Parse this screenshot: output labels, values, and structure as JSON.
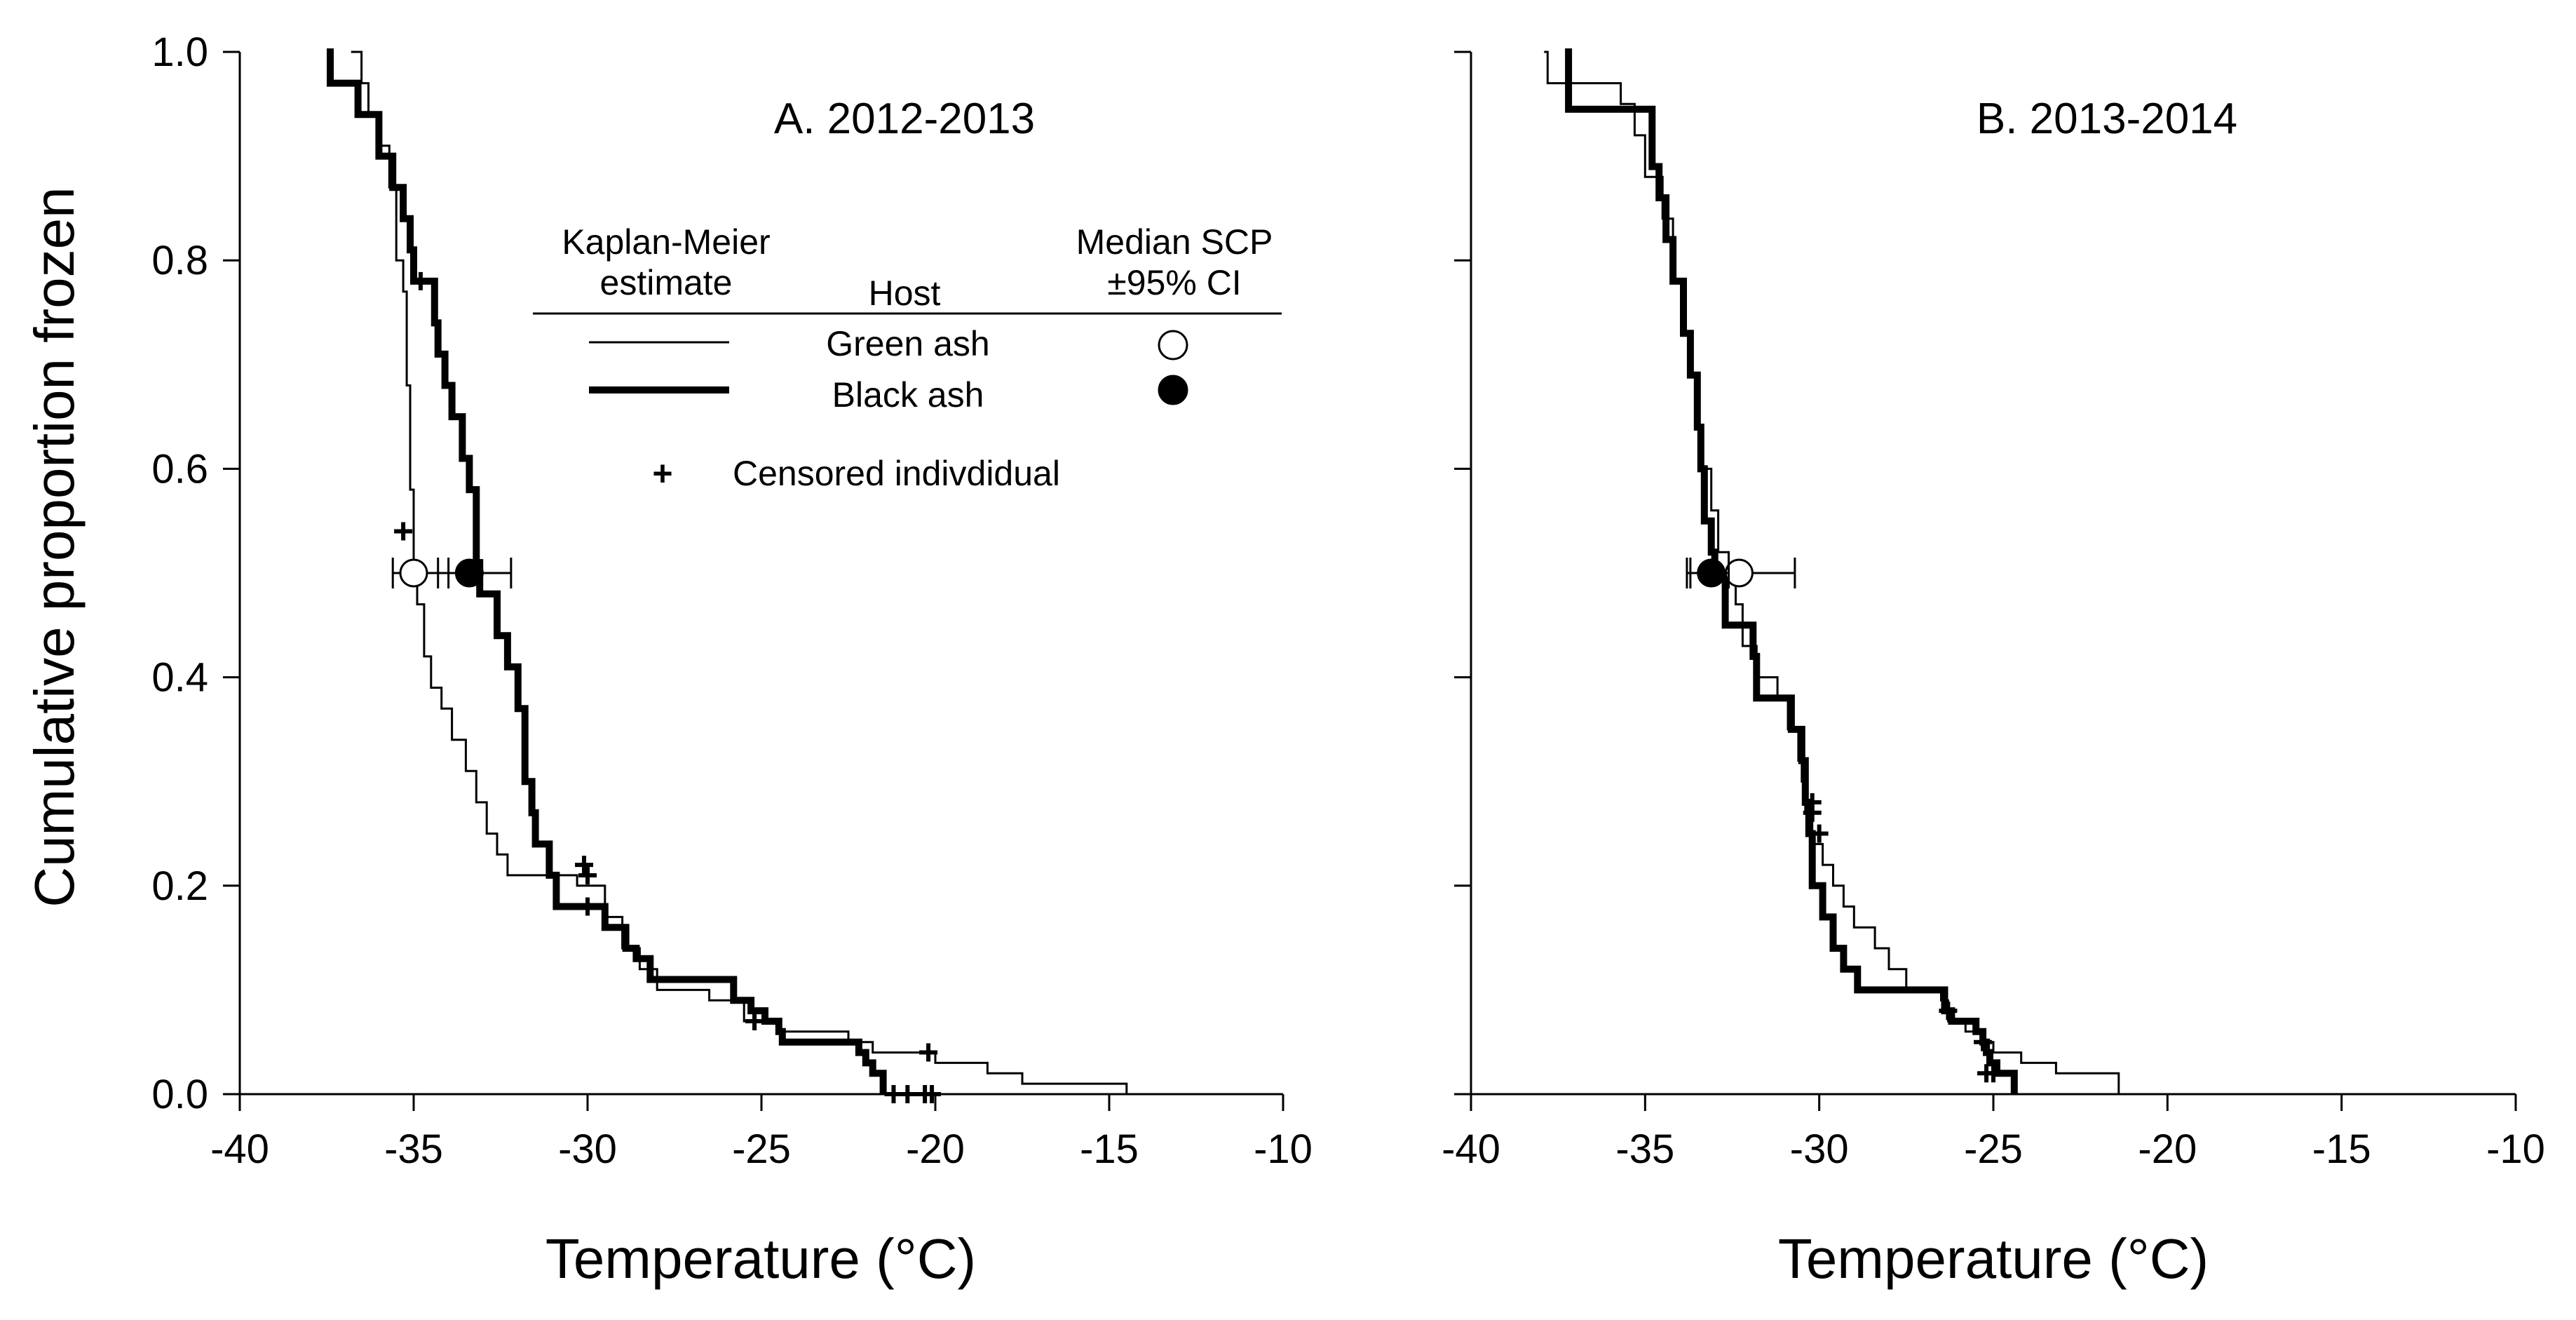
{
  "chart_data": {
    "type": "step",
    "shared": {
      "ylabel": "Cumulative proportion frozen",
      "xlabel": "Temperature (°C)",
      "xlim": [
        -40,
        -10
      ],
      "ylim": [
        0,
        1
      ],
      "xticks": [
        -40,
        -35,
        -30,
        -25,
        -20,
        -15,
        -10
      ],
      "yticks": [
        0.0,
        0.2,
        0.4,
        0.6,
        0.8,
        1.0
      ],
      "xtick_labels": [
        "-40",
        "-35",
        "-30",
        "-25",
        "-20",
        "-15",
        "-10"
      ],
      "ytick_labels": [
        "0.0",
        "0.2",
        "0.4",
        "0.6",
        "0.8",
        "1.0"
      ]
    },
    "legend": {
      "col1_header_line1": "Kaplan-Meier",
      "col1_header_line2": "estimate",
      "col2_header": "Host",
      "col3_header_line1": "Median SCP",
      "col3_header_line2": "±95% CI",
      "green_label": "Green ash",
      "black_label": "Black ash",
      "censor_symbol": "+",
      "censor_label": "Censored indivdidual",
      "green_marker": "open circle",
      "black_marker": "filled circle"
    },
    "panels": [
      {
        "title": "A. 2012-2013",
        "series": [
          {
            "name": "Green ash",
            "line": "thin",
            "steps": [
              [
                -36.8,
                1.0
              ],
              [
                -36.5,
                0.97
              ],
              [
                -36.3,
                0.94
              ],
              [
                -36.0,
                0.91
              ],
              [
                -35.7,
                0.87
              ],
              [
                -35.5,
                0.8
              ],
              [
                -35.3,
                0.77
              ],
              [
                -35.2,
                0.68
              ],
              [
                -35.1,
                0.58
              ],
              [
                -35.0,
                0.5
              ],
              [
                -34.9,
                0.47
              ],
              [
                -34.7,
                0.42
              ],
              [
                -34.5,
                0.39
              ],
              [
                -34.2,
                0.37
              ],
              [
                -33.9,
                0.34
              ],
              [
                -33.5,
                0.31
              ],
              [
                -33.2,
                0.28
              ],
              [
                -32.9,
                0.25
              ],
              [
                -32.6,
                0.23
              ],
              [
                -32.3,
                0.21
              ],
              [
                -31.2,
                0.21
              ],
              [
                -30.3,
                0.2
              ],
              [
                -29.5,
                0.17
              ],
              [
                -29.0,
                0.14
              ],
              [
                -28.5,
                0.12
              ],
              [
                -28.0,
                0.1
              ],
              [
                -26.5,
                0.09
              ],
              [
                -25.5,
                0.07
              ],
              [
                -24.5,
                0.06
              ],
              [
                -22.5,
                0.05
              ],
              [
                -21.8,
                0.04
              ],
              [
                -20.0,
                0.03
              ],
              [
                -18.5,
                0.02
              ],
              [
                -17.5,
                0.01
              ],
              [
                -14.5,
                0.0
              ]
            ],
            "censored": [
              [
                -35.3,
                0.54
              ],
              [
                -34.8,
                0.78
              ],
              [
                -30.0,
                0.21
              ],
              [
                -25.2,
                0.07
              ],
              [
                -21.2,
                0.0
              ],
              [
                -20.8,
                0.0
              ],
              [
                -20.3,
                0.0
              ]
            ],
            "median": -35.0,
            "ci": [
              -35.6,
              -34.0
            ]
          },
          {
            "name": "Black ash",
            "line": "thick",
            "steps": [
              [
                -37.5,
                1.0
              ],
              [
                -37.4,
                0.97
              ],
              [
                -36.6,
                0.94
              ],
              [
                -36.0,
                0.9
              ],
              [
                -35.6,
                0.87
              ],
              [
                -35.3,
                0.84
              ],
              [
                -35.1,
                0.81
              ],
              [
                -35.0,
                0.78
              ],
              [
                -34.4,
                0.74
              ],
              [
                -34.3,
                0.71
              ],
              [
                -34.1,
                0.68
              ],
              [
                -33.9,
                0.65
              ],
              [
                -33.6,
                0.61
              ],
              [
                -33.4,
                0.58
              ],
              [
                -33.2,
                0.51
              ],
              [
                -33.1,
                0.48
              ],
              [
                -32.6,
                0.44
              ],
              [
                -32.3,
                0.41
              ],
              [
                -32.0,
                0.37
              ],
              [
                -31.8,
                0.3
              ],
              [
                -31.6,
                0.27
              ],
              [
                -31.5,
                0.24
              ],
              [
                -31.1,
                0.21
              ],
              [
                -30.9,
                0.18
              ],
              [
                -30.0,
                0.18
              ],
              [
                -29.5,
                0.16
              ],
              [
                -28.9,
                0.14
              ],
              [
                -28.6,
                0.13
              ],
              [
                -28.2,
                0.11
              ],
              [
                -26.5,
                0.11
              ],
              [
                -25.8,
                0.09
              ],
              [
                -25.3,
                0.08
              ],
              [
                -24.9,
                0.07
              ],
              [
                -24.5,
                0.06
              ],
              [
                -24.4,
                0.05
              ],
              [
                -22.5,
                0.05
              ],
              [
                -22.2,
                0.04
              ],
              [
                -22.0,
                0.03
              ],
              [
                -21.8,
                0.02
              ],
              [
                -21.5,
                0.0
              ]
            ],
            "censored": [
              [
                -30.1,
                0.22
              ],
              [
                -30.0,
                0.18
              ],
              [
                -25.2,
                0.07
              ],
              [
                -20.2,
                0.04
              ],
              [
                -20.1,
                0.0
              ]
            ],
            "median": -33.4,
            "ci": [
              -34.3,
              -32.2
            ]
          }
        ]
      },
      {
        "title": "B. 2013-2014",
        "series": [
          {
            "name": "Green ash",
            "line": "thin",
            "steps": [
              [
                -37.9,
                1.0
              ],
              [
                -37.8,
                0.97
              ],
              [
                -35.7,
                0.95
              ],
              [
                -35.3,
                0.92
              ],
              [
                -35.0,
                0.88
              ],
              [
                -34.5,
                0.84
              ],
              [
                -34.2,
                0.78
              ],
              [
                -33.9,
                0.73
              ],
              [
                -33.7,
                0.69
              ],
              [
                -33.5,
                0.64
              ],
              [
                -33.4,
                0.6
              ],
              [
                -33.1,
                0.56
              ],
              [
                -32.9,
                0.52
              ],
              [
                -32.6,
                0.5
              ],
              [
                -32.4,
                0.47
              ],
              [
                -32.2,
                0.43
              ],
              [
                -31.8,
                0.4
              ],
              [
                -31.2,
                0.38
              ],
              [
                -30.9,
                0.35
              ],
              [
                -30.6,
                0.32
              ],
              [
                -30.5,
                0.3
              ],
              [
                -30.4,
                0.27
              ],
              [
                -30.2,
                0.24
              ],
              [
                -29.9,
                0.22
              ],
              [
                -29.6,
                0.2
              ],
              [
                -29.3,
                0.18
              ],
              [
                -29.0,
                0.16
              ],
              [
                -28.4,
                0.14
              ],
              [
                -28.0,
                0.12
              ],
              [
                -27.5,
                0.1
              ],
              [
                -26.5,
                0.09
              ],
              [
                -26.3,
                0.07
              ],
              [
                -25.8,
                0.06
              ],
              [
                -25.3,
                0.05
              ],
              [
                -25.0,
                0.04
              ],
              [
                -24.2,
                0.03
              ],
              [
                -23.2,
                0.02
              ],
              [
                -21.4,
                0.0
              ]
            ],
            "censored": [
              [
                -30.2,
                0.28
              ],
              [
                -30.0,
                0.25
              ],
              [
                -26.3,
                0.08
              ],
              [
                -25.2,
                0.02
              ]
            ],
            "median": -32.3,
            "ci": [
              -33.8,
              -30.7
            ]
          },
          {
            "name": "Black ash",
            "line": "thick",
            "steps": [
              [
                -37.3,
                1.0
              ],
              [
                -37.2,
                0.945
              ],
              [
                -34.8,
                0.89
              ],
              [
                -34.6,
                0.86
              ],
              [
                -34.4,
                0.82
              ],
              [
                -34.2,
                0.78
              ],
              [
                -33.9,
                0.73
              ],
              [
                -33.7,
                0.69
              ],
              [
                -33.5,
                0.64
              ],
              [
                -33.4,
                0.6
              ],
              [
                -33.3,
                0.55
              ],
              [
                -33.1,
                0.52
              ],
              [
                -33.0,
                0.5
              ],
              [
                -32.7,
                0.45
              ],
              [
                -31.9,
                0.42
              ],
              [
                -31.8,
                0.38
              ],
              [
                -30.9,
                0.38
              ],
              [
                -30.8,
                0.35
              ],
              [
                -30.5,
                0.32
              ],
              [
                -30.4,
                0.28
              ],
              [
                -30.3,
                0.25
              ],
              [
                -30.2,
                0.2
              ],
              [
                -29.9,
                0.17
              ],
              [
                -29.6,
                0.14
              ],
              [
                -29.3,
                0.12
              ],
              [
                -28.9,
                0.1
              ],
              [
                -26.8,
                0.1
              ],
              [
                -26.4,
                0.08
              ],
              [
                -26.2,
                0.07
              ],
              [
                -25.5,
                0.06
              ],
              [
                -25.3,
                0.05
              ],
              [
                -25.2,
                0.04
              ],
              [
                -25.1,
                0.03
              ],
              [
                -24.9,
                0.02
              ],
              [
                -24.4,
                0.0
              ]
            ],
            "censored": [
              [
                -30.2,
                0.27
              ],
              [
                -25.3,
                0.05
              ],
              [
                -25.0,
                0.02
              ]
            ],
            "median": -33.1,
            "ci": [
              -33.7,
              -32.6
            ]
          }
        ]
      }
    ]
  }
}
